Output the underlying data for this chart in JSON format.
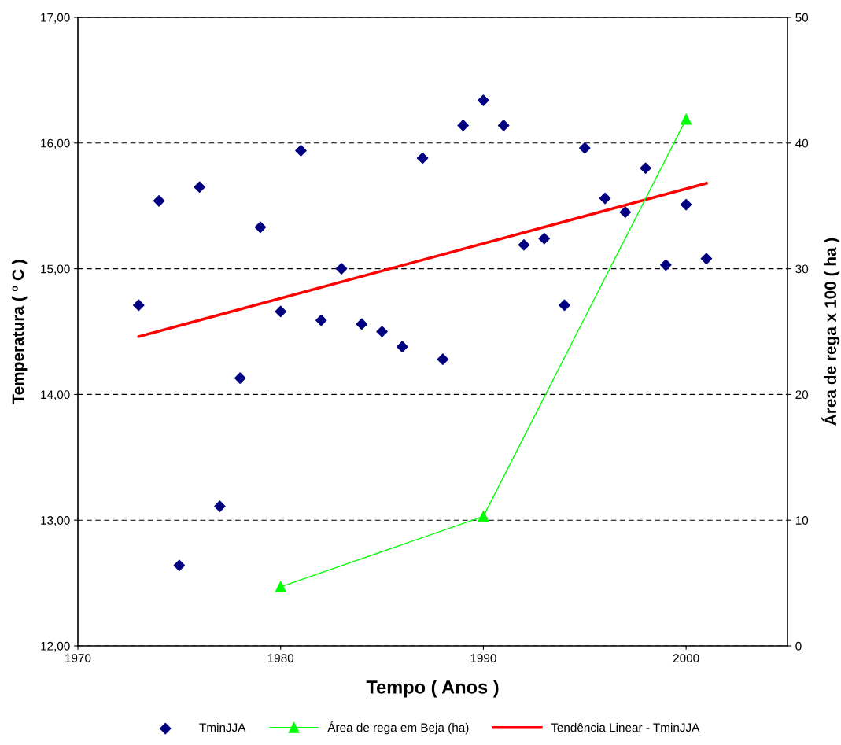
{
  "chart_data": {
    "type": "scatter",
    "xlabel": "Tempo ( Anos )",
    "ylabel": "Temperatura ( º C )",
    "y2label": "Área de rega x 100 ( ha )",
    "xlim": [
      1970,
      2005
    ],
    "xticks": [
      1970,
      1980,
      1990,
      2000
    ],
    "ylim": [
      12,
      17
    ],
    "yticks": [
      {
        "value": 12,
        "label": "12,00"
      },
      {
        "value": 13,
        "label": "13,00"
      },
      {
        "value": 14,
        "label": "14,00"
      },
      {
        "value": 15,
        "label": "15,00"
      },
      {
        "value": 16,
        "label": "16,00"
      },
      {
        "value": 17,
        "label": "17,00"
      }
    ],
    "y2lim": [
      0,
      50
    ],
    "y2ticks": [
      0,
      10,
      20,
      30,
      40,
      50
    ],
    "grid": "y",
    "legend": "bottom",
    "series": [
      {
        "name": "TminJJA",
        "marker": "diamond",
        "color": "#000080",
        "x": [
          1973,
          1974,
          1975,
          1976,
          1977,
          1978,
          1979,
          1980,
          1981,
          1982,
          1983,
          1984,
          1985,
          1986,
          1987,
          1988,
          1989,
          1990,
          1991,
          1992,
          1993,
          1994,
          1995,
          1996,
          1997,
          1998,
          1999,
          2000,
          2001
        ],
        "values": [
          14.71,
          15.54,
          12.64,
          15.65,
          13.11,
          14.13,
          15.33,
          14.66,
          15.94,
          14.59,
          15.0,
          14.56,
          14.5,
          14.38,
          15.88,
          14.28,
          16.14,
          16.34,
          16.14,
          15.19,
          15.24,
          14.71,
          15.96,
          15.56,
          15.45,
          15.8,
          15.03,
          15.51,
          15.08
        ]
      },
      {
        "name": "Área de rega em Beja (ha)",
        "type": "line",
        "marker": "triangle",
        "axis": "y2",
        "color": "#00ff00",
        "x": [
          1980,
          1990,
          2000
        ],
        "values": [
          4.7,
          10.3,
          41.9
        ]
      },
      {
        "name": "Tendência Linear - TminJJA",
        "type": "line",
        "marker": "none",
        "color": "#ff0000",
        "x": [
          1973,
          2001
        ],
        "values": [
          14.46,
          15.68
        ]
      }
    ]
  }
}
